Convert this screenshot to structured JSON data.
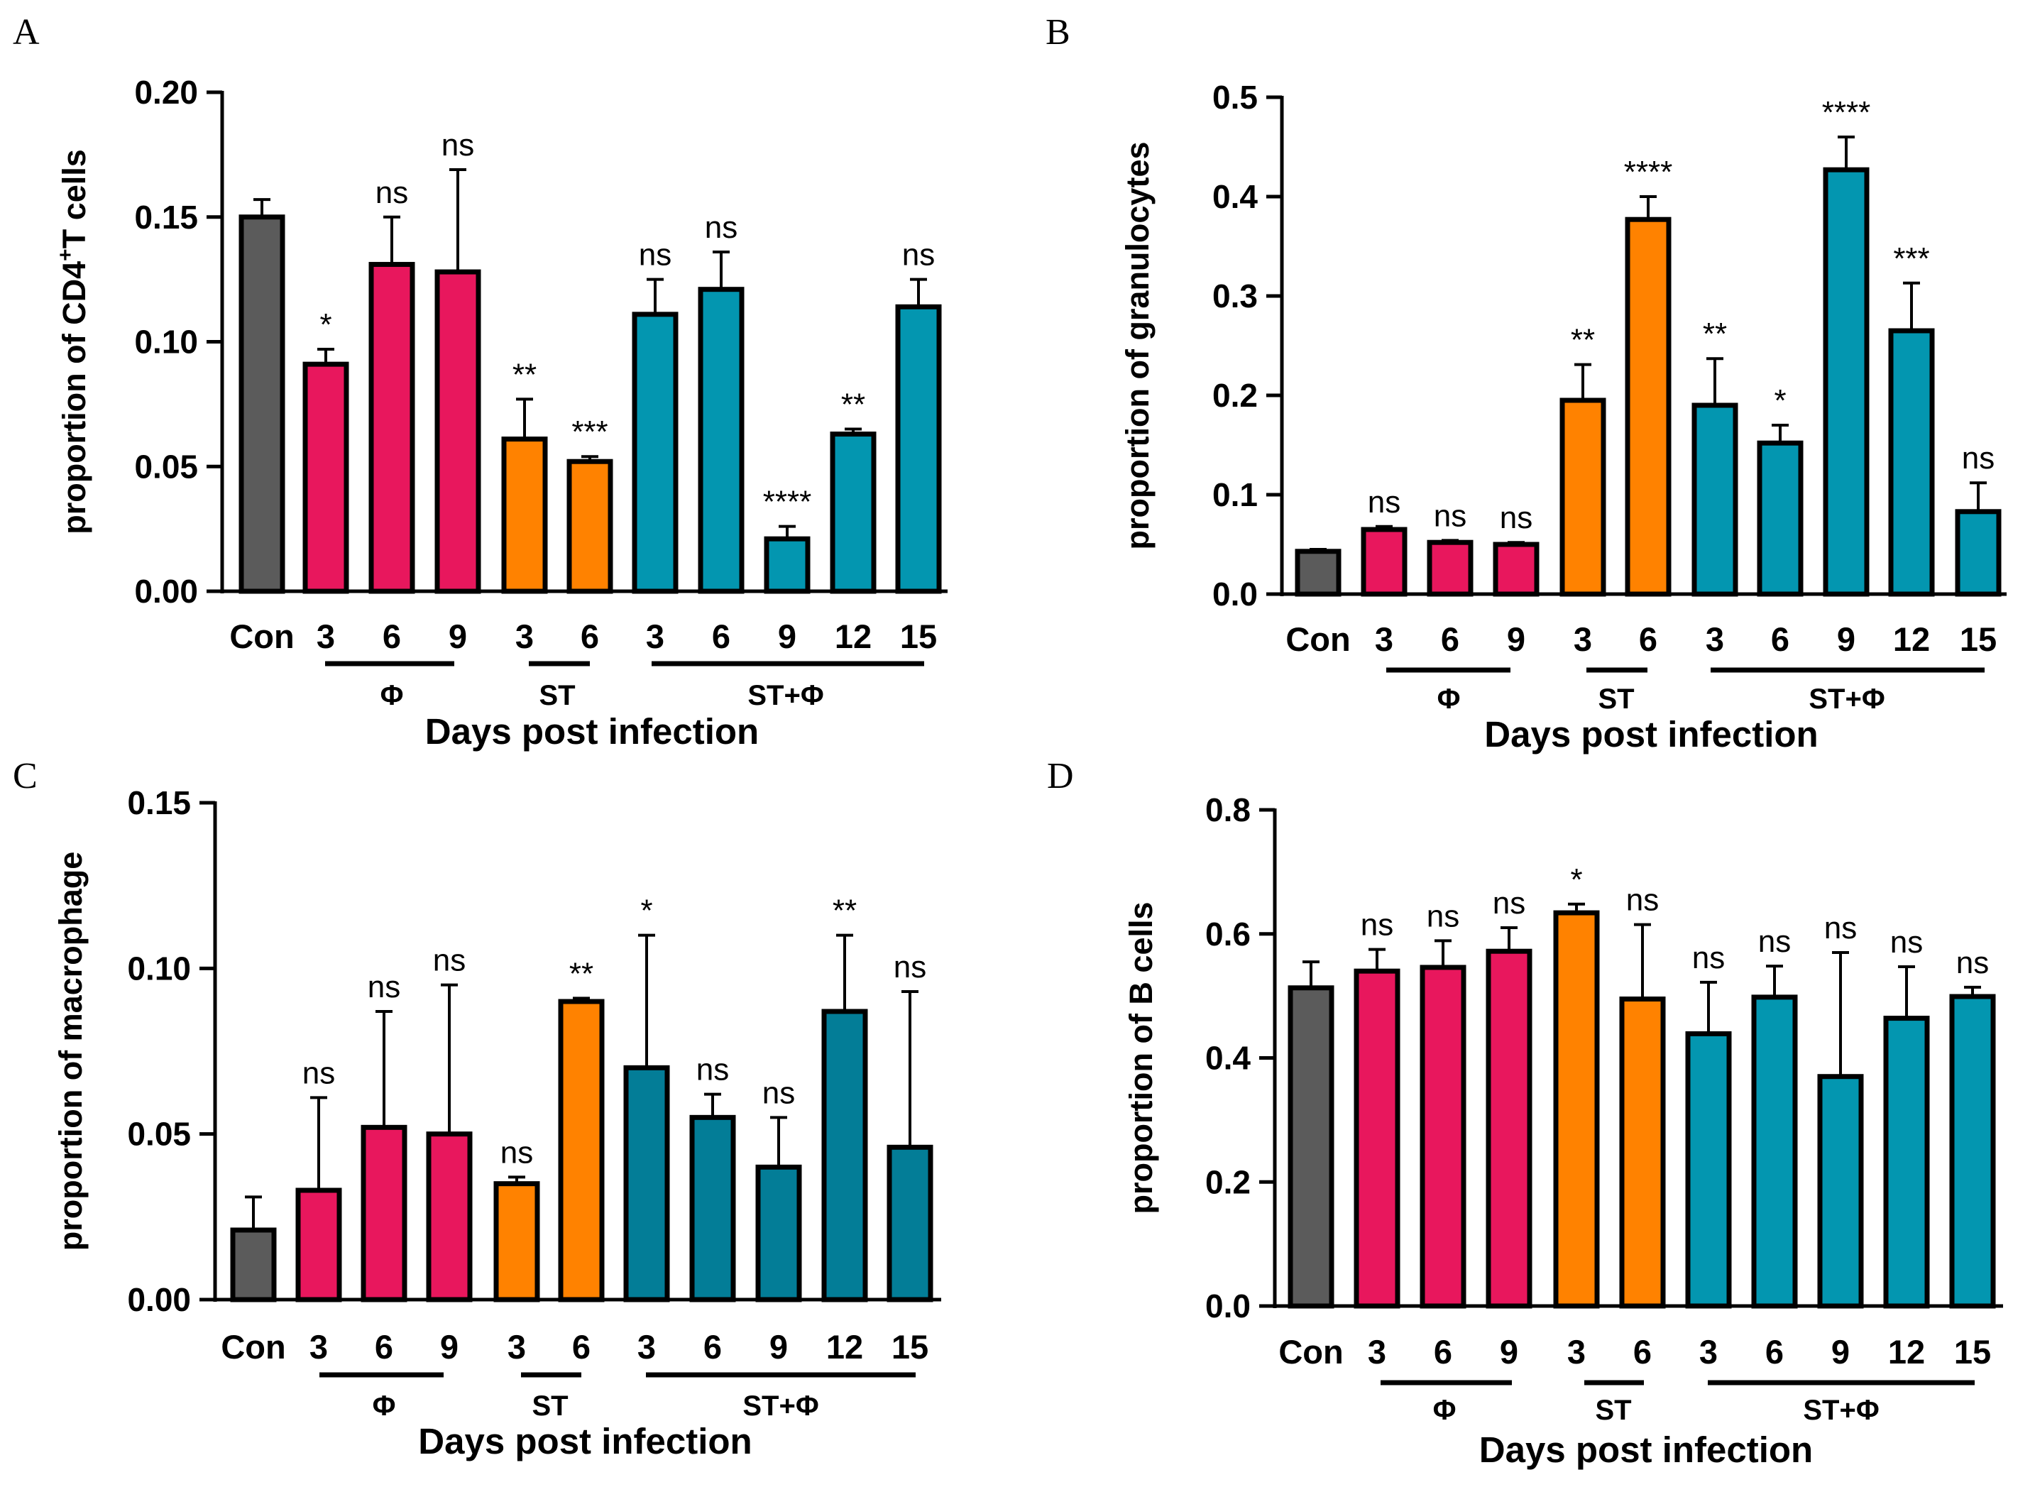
{
  "colors": {
    "Con": "#5b5b5b",
    "Phi": "#e8175d",
    "ST": "#ff8200",
    "STPhi": "#0396b0",
    "STPhi_dark": "#037d97"
  },
  "chart_data": [
    {
      "type": "bar",
      "panel": "A",
      "ylabel": "proportion of CD4",
      "ylabel_sup": "+",
      "ylabel_end": "T cells",
      "xlabel": "Days post infection",
      "categories": [
        "Con",
        "3",
        "6",
        "9",
        "3",
        "6",
        "3",
        "6",
        "9",
        "12",
        "15"
      ],
      "groups": [
        "Con",
        "Phi",
        "Phi",
        "Phi",
        "ST",
        "ST",
        "STPhi",
        "STPhi",
        "STPhi",
        "STPhi",
        "STPhi"
      ],
      "values": [
        0.15,
        0.091,
        0.131,
        0.128,
        0.061,
        0.052,
        0.111,
        0.121,
        0.021,
        0.063,
        0.114
      ],
      "errors": [
        0.007,
        0.006,
        0.019,
        0.041,
        0.016,
        0.002,
        0.014,
        0.015,
        0.005,
        0.002,
        0.011
      ],
      "significance": [
        "",
        "*",
        "ns",
        "ns",
        "**",
        "***",
        "ns",
        "ns",
        "****",
        "**",
        "ns"
      ],
      "ylim": [
        0,
        0.2
      ],
      "yticks": [
        "0.00",
        "0.05",
        "0.10",
        "0.15",
        "0.20"
      ],
      "group_labels": [
        "Φ",
        "ST",
        "ST+Φ"
      ]
    },
    {
      "type": "bar",
      "panel": "B",
      "ylabel": "proportion of granulocytes",
      "xlabel": "Days post infection",
      "categories": [
        "Con",
        "3",
        "6",
        "9",
        "3",
        "6",
        "3",
        "6",
        "9",
        "12",
        "15"
      ],
      "groups": [
        "Con",
        "Phi",
        "Phi",
        "Phi",
        "ST",
        "ST",
        "STPhi",
        "STPhi",
        "STPhi",
        "STPhi",
        "STPhi"
      ],
      "values": [
        0.043,
        0.065,
        0.052,
        0.05,
        0.195,
        0.377,
        0.19,
        0.152,
        0.427,
        0.265,
        0.083
      ],
      "errors": [
        0.002,
        0.003,
        0.002,
        0.002,
        0.036,
        0.023,
        0.047,
        0.018,
        0.033,
        0.048,
        0.029
      ],
      "significance": [
        "",
        "ns",
        "ns",
        "ns",
        "**",
        "****",
        "**",
        "*",
        "****",
        "***",
        "ns"
      ],
      "ylim": [
        0,
        0.5
      ],
      "yticks": [
        "0.0",
        "0.1",
        "0.2",
        "0.3",
        "0.4",
        "0.5"
      ],
      "group_labels": [
        "Φ",
        "ST",
        "ST+Φ"
      ]
    },
    {
      "type": "bar",
      "panel": "C",
      "ylabel": "proportion of macrophage",
      "xlabel": "Days post infection",
      "categories": [
        "Con",
        "3",
        "6",
        "9",
        "3",
        "6",
        "3",
        "6",
        "9",
        "12",
        "15"
      ],
      "groups": [
        "Con",
        "Phi",
        "Phi",
        "Phi",
        "ST",
        "ST",
        "STPhi_dark",
        "STPhi_dark",
        "STPhi_dark",
        "STPhi_dark",
        "STPhi_dark"
      ],
      "values": [
        0.021,
        0.033,
        0.052,
        0.05,
        0.035,
        0.09,
        0.07,
        0.055,
        0.04,
        0.087,
        0.046
      ],
      "errors": [
        0.01,
        0.028,
        0.035,
        0.045,
        0.002,
        0.001,
        0.04,
        0.007,
        0.015,
        0.023,
        0.047
      ],
      "significance": [
        "",
        "ns",
        "ns",
        "ns",
        "ns",
        "**",
        "*",
        "ns",
        "ns",
        "**",
        "ns"
      ],
      "ylim": [
        0,
        0.15
      ],
      "yticks": [
        "0.00",
        "0.05",
        "0.10",
        "0.15"
      ],
      "group_labels": [
        "Φ",
        "ST",
        "ST+Φ"
      ]
    },
    {
      "type": "bar",
      "panel": "D",
      "ylabel": "proportion of B cells",
      "xlabel": "Days post infection",
      "categories": [
        "Con",
        "3",
        "6",
        "9",
        "3",
        "6",
        "3",
        "6",
        "9",
        "12",
        "15"
      ],
      "groups": [
        "Con",
        "Phi",
        "Phi",
        "Phi",
        "ST",
        "ST",
        "STPhi",
        "STPhi",
        "STPhi",
        "STPhi",
        "STPhi"
      ],
      "values": [
        0.513,
        0.54,
        0.546,
        0.572,
        0.634,
        0.495,
        0.439,
        0.498,
        0.37,
        0.464,
        0.499
      ],
      "errors": [
        0.042,
        0.035,
        0.043,
        0.038,
        0.014,
        0.12,
        0.083,
        0.05,
        0.2,
        0.083,
        0.015
      ],
      "significance": [
        "",
        "ns",
        "ns",
        "ns",
        "*",
        "ns",
        "ns",
        "ns",
        "ns",
        "ns",
        "ns"
      ],
      "ylim": [
        0,
        0.8
      ],
      "yticks": [
        "0.0",
        "0.2",
        "0.4",
        "0.6",
        "0.8"
      ],
      "group_labels": [
        "Φ",
        "ST",
        "ST+Φ"
      ]
    }
  ]
}
